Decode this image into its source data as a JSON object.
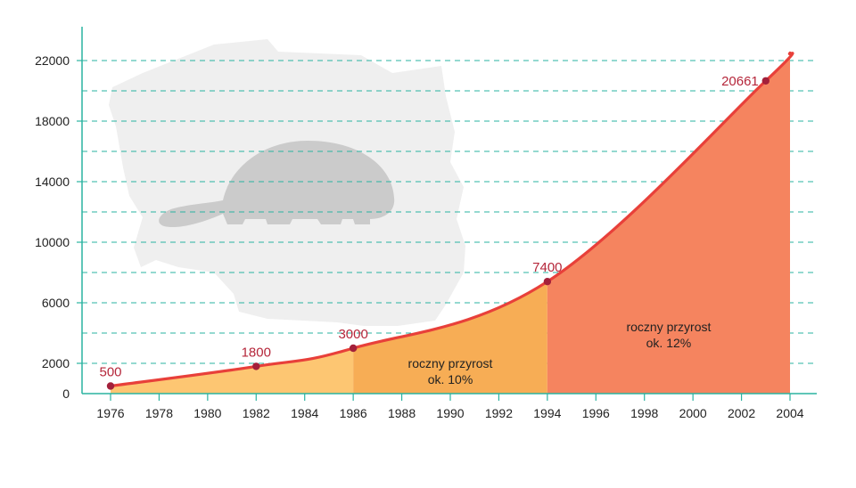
{
  "chart_data": {
    "type": "area",
    "x_ticks": [
      1976,
      1978,
      1980,
      1982,
      1984,
      1986,
      1988,
      1990,
      1992,
      1994,
      1996,
      1998,
      2000,
      2002,
      2004
    ],
    "y_ticks": [
      0,
      2000,
      6000,
      10000,
      14000,
      18000,
      22000
    ],
    "y_minor_gridlines": [
      4000,
      8000,
      12000,
      16000,
      20000
    ],
    "xlim": [
      1976,
      2004
    ],
    "ylim": [
      0,
      22000
    ],
    "series": [
      {
        "points": [
          {
            "x": 1976,
            "y": 500
          },
          {
            "x": 1982,
            "y": 1800
          },
          {
            "x": 1986,
            "y": 3000
          },
          {
            "x": 1994,
            "y": 7400
          },
          {
            "x": 2003,
            "y": 20661
          },
          {
            "x": 2004,
            "y": 22500
          }
        ]
      }
    ],
    "labeled_points": [
      {
        "x": 1976,
        "y": 500,
        "label": "500"
      },
      {
        "x": 1982,
        "y": 1800,
        "label": "1800"
      },
      {
        "x": 1986,
        "y": 3000,
        "label": "3000"
      },
      {
        "x": 1994,
        "y": 7400,
        "label": "7400"
      },
      {
        "x": 2003,
        "y": 20661,
        "label": "20661"
      }
    ],
    "regions": [
      {
        "from": 1976,
        "to": 1986,
        "color": "#fdc672"
      },
      {
        "from": 1986,
        "to": 1994,
        "color": "#f7ad55",
        "label_line1": "roczny przyrost",
        "label_line2": "ok. 10%"
      },
      {
        "from": 1994,
        "to": 2004,
        "color": "#f5845f",
        "label_line1": "roczny przyrost",
        "label_line2": "ok. 12%"
      }
    ],
    "grid": "dashed horizontal",
    "colors": {
      "line": "#e8403a",
      "point": "#a3203a",
      "axis": "#2ab3a0",
      "gridline": "#2ab3a0",
      "map": "#efefef",
      "beaver": "#cbcbcb"
    },
    "background_icons": [
      "poland-map-icon",
      "beaver-icon"
    ]
  }
}
